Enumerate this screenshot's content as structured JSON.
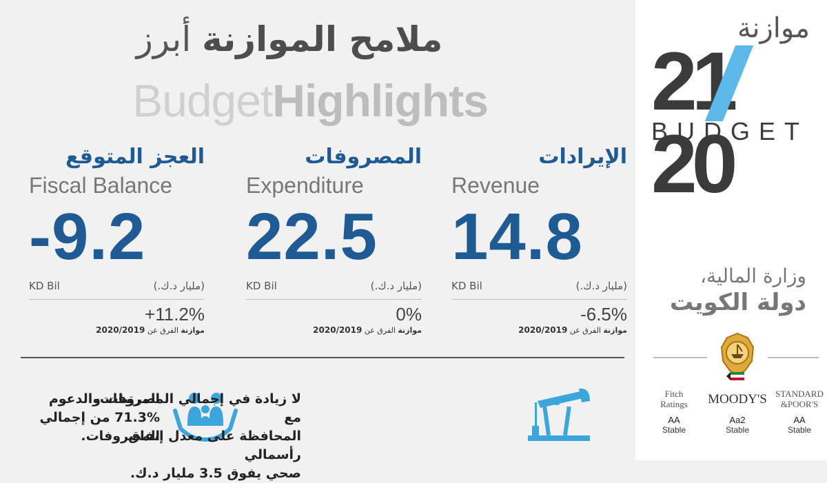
{
  "header": {
    "title_ar_light": "أبرز",
    "title_ar_bold": "ملامح الموازنة",
    "title_en_light": "Budget",
    "title_en_bold": "Highlights"
  },
  "metrics": [
    {
      "label_ar": "الإيرادات",
      "label_en": "Revenue",
      "value": "14.8",
      "unit_en": "KD Bil",
      "unit_ar": "(مليار د.ك.)",
      "change": "-6.5%",
      "note_prefix": "الفرق عن",
      "note_bold": "موازنة",
      "note_year": "2020/2019"
    },
    {
      "label_ar": "المصروفات",
      "label_en": "Expenditure",
      "value": "22.5",
      "unit_en": "KD Bil",
      "unit_ar": "(مليار د.ك.)",
      "change": "0%",
      "note_prefix": "الفرق عن",
      "note_bold": "موازنة",
      "note_year": "2020/2019"
    },
    {
      "label_ar": "العجز المتوقع",
      "label_en": "Fiscal Balance",
      "value": "-9.2",
      "unit_en": "KD Bil",
      "unit_ar": "(مليار د.ك.)",
      "change": "+11.2%",
      "note_prefix": "الفرق عن",
      "note_bold": "موازنة",
      "note_year": "2020/2019"
    }
  ],
  "highlights": {
    "salaries": {
      "line1": "المرتبات والدعوم",
      "line2": "71.3% من إجمالي",
      "line3": "المصروفات."
    },
    "capital": {
      "line1": "لا زيادة في إجمالي المصروفات، مع",
      "line2": "المحافظة على معدل إنفاق رأسمالي",
      "line3": "صحي يفوق 3.5 مليار د.ك."
    },
    "salaries_icon": "family-hands-icon",
    "capital_icon": "oil-pump-icon"
  },
  "brand": {
    "ar": "موازنة",
    "num_left": "21",
    "num_right": "20",
    "word": "BUDGET"
  },
  "ministry": {
    "line1": "وزارة المالية،",
    "line2": "دولة الكويت"
  },
  "ratings": [
    {
      "agency_line1": "STANDARD",
      "agency_line2": "&POOR'S",
      "grade": "AA",
      "outlook": "Stable"
    },
    {
      "agency_line1": "MOODY'S",
      "agency_line2": "",
      "grade": "Aa2",
      "outlook": "Stable"
    },
    {
      "agency_line1": "Fitch",
      "agency_line2": "Ratings",
      "grade": "AA",
      "outlook": "Stable"
    }
  ],
  "colors": {
    "accent": "#1e5a94",
    "icon": "#3aa6dc",
    "slash": "#5bb8e8"
  }
}
